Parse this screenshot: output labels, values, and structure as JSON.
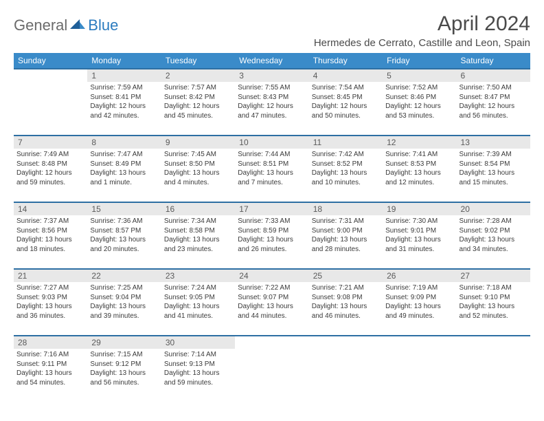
{
  "logo": {
    "part1": "General",
    "part2": "Blue"
  },
  "title": "April 2024",
  "location": "Hermedes de Cerrato, Castille and Leon, Spain",
  "colors": {
    "header_bg": "#3a8bc9",
    "header_text": "#ffffff",
    "daynum_bg": "#e8e8e8",
    "daynum_border": "#2d6fa3",
    "logo_gray": "#6b6b6b",
    "logo_blue": "#2b7bbf",
    "text": "#3a3a3a"
  },
  "weekdays": [
    "Sunday",
    "Monday",
    "Tuesday",
    "Wednesday",
    "Thursday",
    "Friday",
    "Saturday"
  ],
  "weeks": [
    {
      "nums": [
        "",
        "1",
        "2",
        "3",
        "4",
        "5",
        "6"
      ],
      "cells": [
        null,
        {
          "sunrise": "Sunrise: 7:59 AM",
          "sunset": "Sunset: 8:41 PM",
          "day1": "Daylight: 12 hours",
          "day2": "and 42 minutes."
        },
        {
          "sunrise": "Sunrise: 7:57 AM",
          "sunset": "Sunset: 8:42 PM",
          "day1": "Daylight: 12 hours",
          "day2": "and 45 minutes."
        },
        {
          "sunrise": "Sunrise: 7:55 AM",
          "sunset": "Sunset: 8:43 PM",
          "day1": "Daylight: 12 hours",
          "day2": "and 47 minutes."
        },
        {
          "sunrise": "Sunrise: 7:54 AM",
          "sunset": "Sunset: 8:45 PM",
          "day1": "Daylight: 12 hours",
          "day2": "and 50 minutes."
        },
        {
          "sunrise": "Sunrise: 7:52 AM",
          "sunset": "Sunset: 8:46 PM",
          "day1": "Daylight: 12 hours",
          "day2": "and 53 minutes."
        },
        {
          "sunrise": "Sunrise: 7:50 AM",
          "sunset": "Sunset: 8:47 PM",
          "day1": "Daylight: 12 hours",
          "day2": "and 56 minutes."
        }
      ]
    },
    {
      "nums": [
        "7",
        "8",
        "9",
        "10",
        "11",
        "12",
        "13"
      ],
      "cells": [
        {
          "sunrise": "Sunrise: 7:49 AM",
          "sunset": "Sunset: 8:48 PM",
          "day1": "Daylight: 12 hours",
          "day2": "and 59 minutes."
        },
        {
          "sunrise": "Sunrise: 7:47 AM",
          "sunset": "Sunset: 8:49 PM",
          "day1": "Daylight: 13 hours",
          "day2": "and 1 minute."
        },
        {
          "sunrise": "Sunrise: 7:45 AM",
          "sunset": "Sunset: 8:50 PM",
          "day1": "Daylight: 13 hours",
          "day2": "and 4 minutes."
        },
        {
          "sunrise": "Sunrise: 7:44 AM",
          "sunset": "Sunset: 8:51 PM",
          "day1": "Daylight: 13 hours",
          "day2": "and 7 minutes."
        },
        {
          "sunrise": "Sunrise: 7:42 AM",
          "sunset": "Sunset: 8:52 PM",
          "day1": "Daylight: 13 hours",
          "day2": "and 10 minutes."
        },
        {
          "sunrise": "Sunrise: 7:41 AM",
          "sunset": "Sunset: 8:53 PM",
          "day1": "Daylight: 13 hours",
          "day2": "and 12 minutes."
        },
        {
          "sunrise": "Sunrise: 7:39 AM",
          "sunset": "Sunset: 8:54 PM",
          "day1": "Daylight: 13 hours",
          "day2": "and 15 minutes."
        }
      ]
    },
    {
      "nums": [
        "14",
        "15",
        "16",
        "17",
        "18",
        "19",
        "20"
      ],
      "cells": [
        {
          "sunrise": "Sunrise: 7:37 AM",
          "sunset": "Sunset: 8:56 PM",
          "day1": "Daylight: 13 hours",
          "day2": "and 18 minutes."
        },
        {
          "sunrise": "Sunrise: 7:36 AM",
          "sunset": "Sunset: 8:57 PM",
          "day1": "Daylight: 13 hours",
          "day2": "and 20 minutes."
        },
        {
          "sunrise": "Sunrise: 7:34 AM",
          "sunset": "Sunset: 8:58 PM",
          "day1": "Daylight: 13 hours",
          "day2": "and 23 minutes."
        },
        {
          "sunrise": "Sunrise: 7:33 AM",
          "sunset": "Sunset: 8:59 PM",
          "day1": "Daylight: 13 hours",
          "day2": "and 26 minutes."
        },
        {
          "sunrise": "Sunrise: 7:31 AM",
          "sunset": "Sunset: 9:00 PM",
          "day1": "Daylight: 13 hours",
          "day2": "and 28 minutes."
        },
        {
          "sunrise": "Sunrise: 7:30 AM",
          "sunset": "Sunset: 9:01 PM",
          "day1": "Daylight: 13 hours",
          "day2": "and 31 minutes."
        },
        {
          "sunrise": "Sunrise: 7:28 AM",
          "sunset": "Sunset: 9:02 PM",
          "day1": "Daylight: 13 hours",
          "day2": "and 34 minutes."
        }
      ]
    },
    {
      "nums": [
        "21",
        "22",
        "23",
        "24",
        "25",
        "26",
        "27"
      ],
      "cells": [
        {
          "sunrise": "Sunrise: 7:27 AM",
          "sunset": "Sunset: 9:03 PM",
          "day1": "Daylight: 13 hours",
          "day2": "and 36 minutes."
        },
        {
          "sunrise": "Sunrise: 7:25 AM",
          "sunset": "Sunset: 9:04 PM",
          "day1": "Daylight: 13 hours",
          "day2": "and 39 minutes."
        },
        {
          "sunrise": "Sunrise: 7:24 AM",
          "sunset": "Sunset: 9:05 PM",
          "day1": "Daylight: 13 hours",
          "day2": "and 41 minutes."
        },
        {
          "sunrise": "Sunrise: 7:22 AM",
          "sunset": "Sunset: 9:07 PM",
          "day1": "Daylight: 13 hours",
          "day2": "and 44 minutes."
        },
        {
          "sunrise": "Sunrise: 7:21 AM",
          "sunset": "Sunset: 9:08 PM",
          "day1": "Daylight: 13 hours",
          "day2": "and 46 minutes."
        },
        {
          "sunrise": "Sunrise: 7:19 AM",
          "sunset": "Sunset: 9:09 PM",
          "day1": "Daylight: 13 hours",
          "day2": "and 49 minutes."
        },
        {
          "sunrise": "Sunrise: 7:18 AM",
          "sunset": "Sunset: 9:10 PM",
          "day1": "Daylight: 13 hours",
          "day2": "and 52 minutes."
        }
      ]
    },
    {
      "nums": [
        "28",
        "29",
        "30",
        "",
        "",
        "",
        ""
      ],
      "cells": [
        {
          "sunrise": "Sunrise: 7:16 AM",
          "sunset": "Sunset: 9:11 PM",
          "day1": "Daylight: 13 hours",
          "day2": "and 54 minutes."
        },
        {
          "sunrise": "Sunrise: 7:15 AM",
          "sunset": "Sunset: 9:12 PM",
          "day1": "Daylight: 13 hours",
          "day2": "and 56 minutes."
        },
        {
          "sunrise": "Sunrise: 7:14 AM",
          "sunset": "Sunset: 9:13 PM",
          "day1": "Daylight: 13 hours",
          "day2": "and 59 minutes."
        },
        null,
        null,
        null,
        null
      ]
    }
  ]
}
